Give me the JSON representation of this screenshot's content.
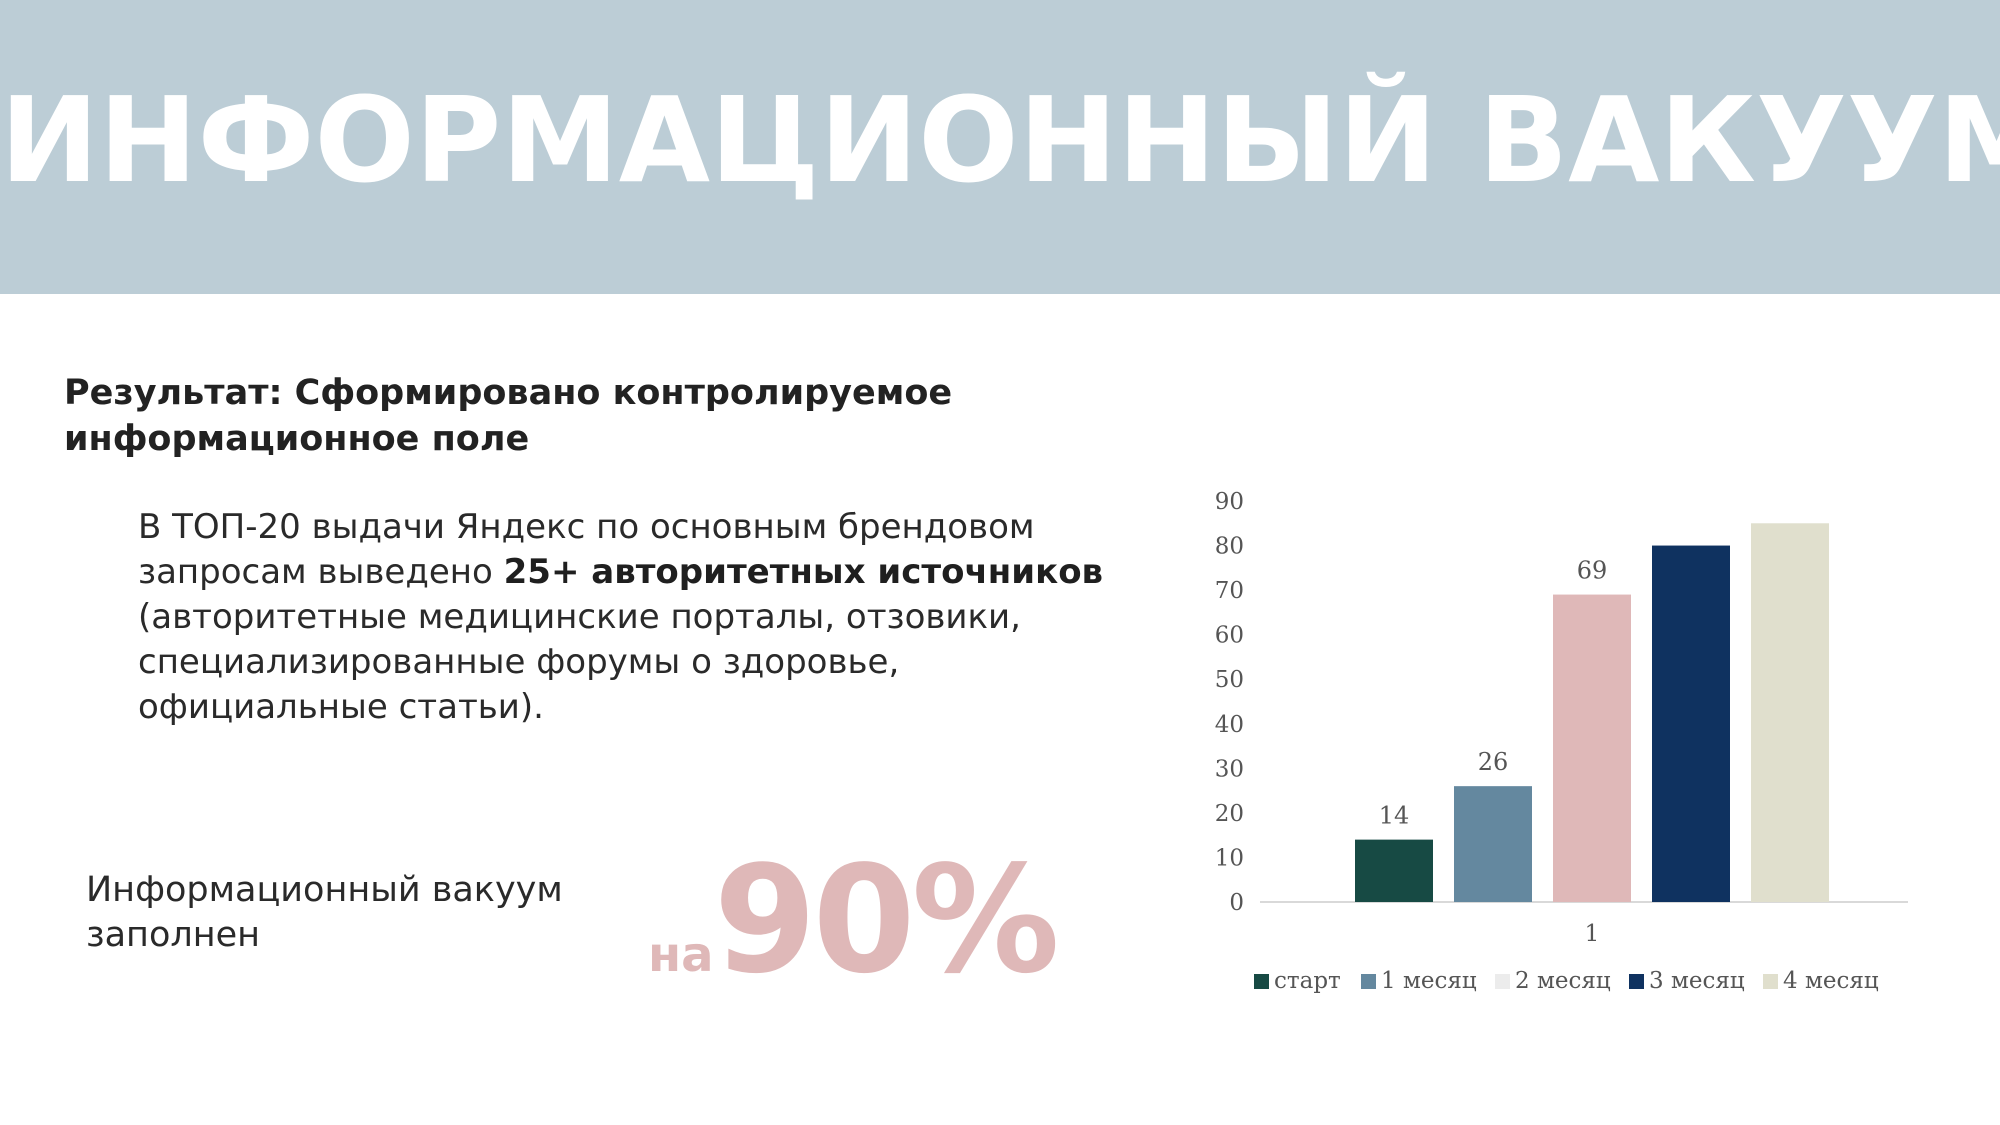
{
  "banner": {
    "title": "ИНФОРМАЦИОННЫЙ ВАКУУМ"
  },
  "result": {
    "heading": "Результат: Сформировано контролируемое информационное поле"
  },
  "body": {
    "part1": "В ТОП-20 выдачи Яндекс по основным брендовом запросам выведено ",
    "bold": "25+ авторитетных источников",
    "part2": " (авторитетные медицинские порталы, отзовики, специализированные форумы о здоровье, официальные статьи)."
  },
  "vacuum": {
    "label": "Информационный вакуум заполнен",
    "prefix": "на",
    "value": "90%"
  },
  "chart_data": {
    "type": "bar",
    "categories": [
      "1"
    ],
    "series": [
      {
        "name": "старт",
        "values": [
          14
        ],
        "color": "#174a44",
        "label": "14"
      },
      {
        "name": "1 месяц",
        "values": [
          26
        ],
        "color": "#64889f",
        "label": "26"
      },
      {
        "name": "2 месяц",
        "values": [
          69
        ],
        "color": "#dfb8b8",
        "label": "69"
      },
      {
        "name": "3 месяц",
        "values": [
          80
        ],
        "color": "#0f3260",
        "label": ""
      },
      {
        "name": "4 месяц",
        "values": [
          85
        ],
        "color": "#e0dfcd",
        "label": ""
      }
    ],
    "legend_colors": [
      "#174a44",
      "#64889f",
      "#ececec",
      "#0f3260",
      "#e0dfcd"
    ],
    "yticks": [
      "0",
      "10",
      "20",
      "30",
      "40",
      "50",
      "60",
      "70",
      "80",
      "90"
    ],
    "ylim": [
      0,
      90
    ],
    "grid": false,
    "legend": "bottom"
  }
}
